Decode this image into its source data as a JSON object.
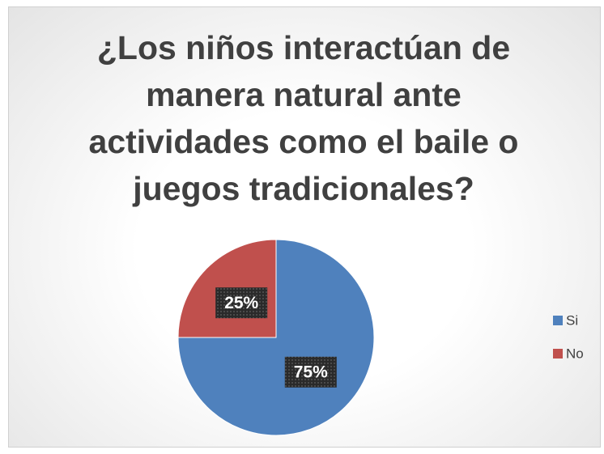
{
  "chart_data": {
    "type": "pie",
    "title": "¿Los niños interactúan de manera natural ante actividades como el baile o juegos tradicionales?",
    "categories": [
      "Si",
      "No"
    ],
    "values": [
      75,
      25
    ],
    "value_labels": [
      "75%",
      "25%"
    ],
    "colors": [
      "#4f81bd",
      "#c0504d"
    ],
    "legend": "right"
  }
}
